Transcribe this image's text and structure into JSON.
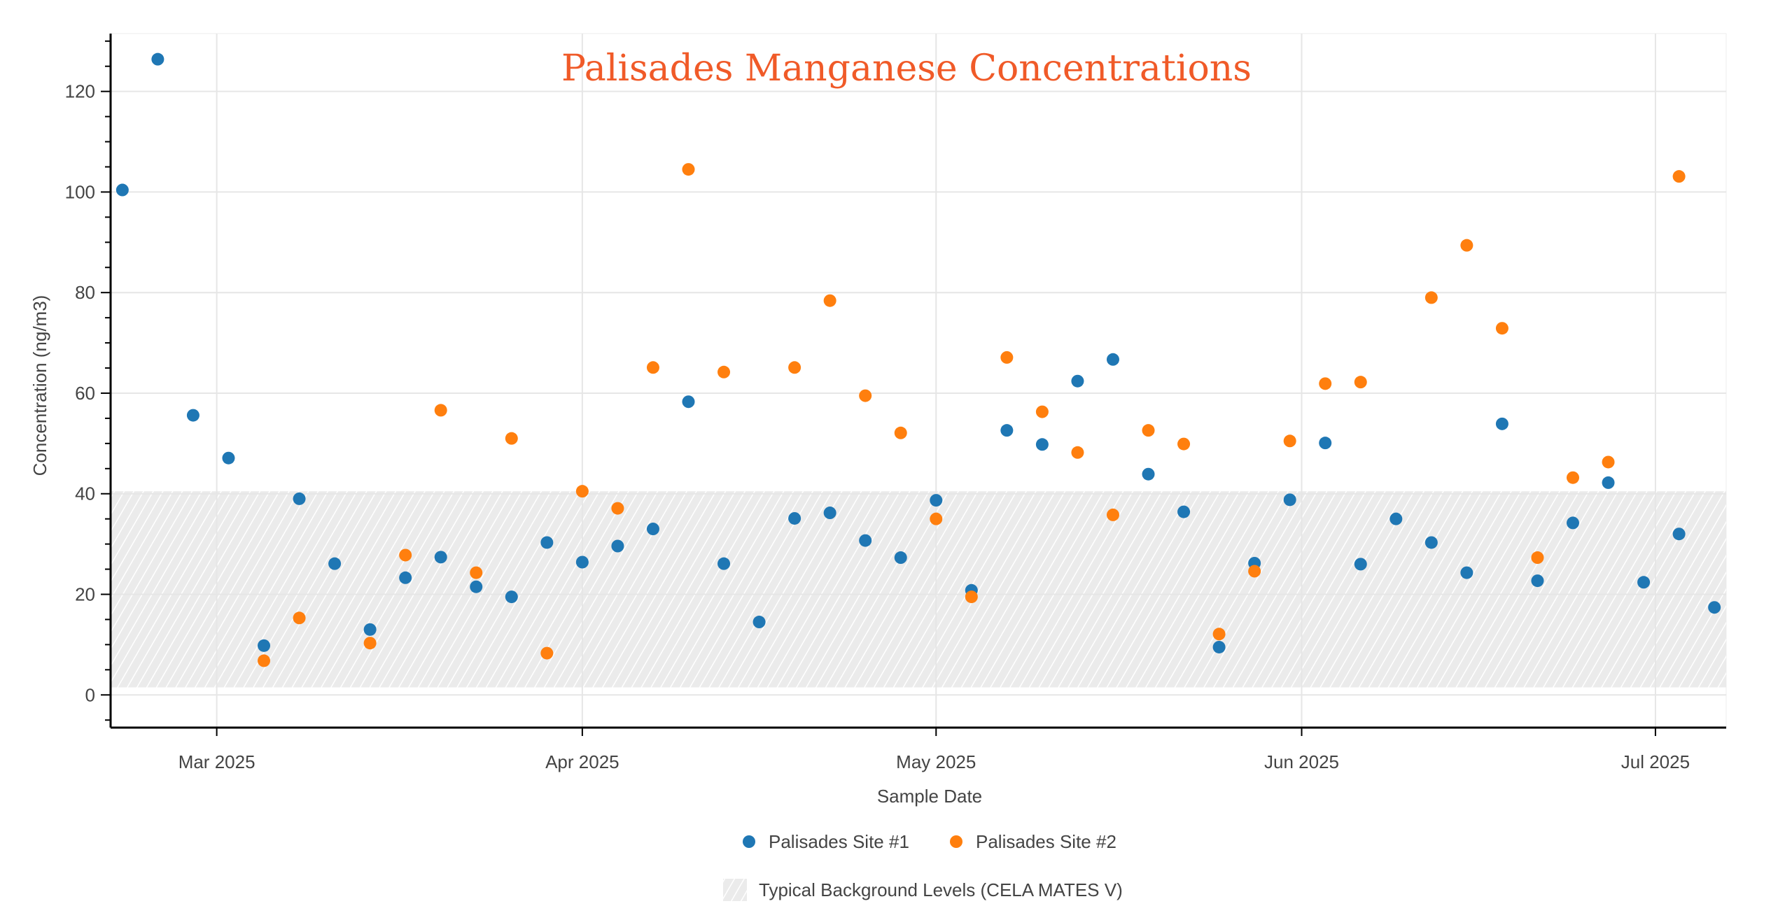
{
  "chart_data": {
    "type": "scatter",
    "title": "Palisades Manganese Concentrations",
    "title_color": "#f05a28",
    "xlabel": "Sample Date",
    "ylabel": "Concentration (ng/m3)",
    "xlim": [
      "2025-02-20",
      "2025-07-07"
    ],
    "ylim": [
      -6.5,
      131.5
    ],
    "grid": true,
    "legend_placement": "bottom-center",
    "x_ticks": [
      {
        "date": "2025-03-01",
        "label": "Mar 2025"
      },
      {
        "date": "2025-04-01",
        "label": "Apr 2025"
      },
      {
        "date": "2025-05-01",
        "label": "May 2025"
      },
      {
        "date": "2025-06-01",
        "label": "Jun 2025"
      },
      {
        "date": "2025-07-01",
        "label": "Jul 2025"
      }
    ],
    "y_ticks": [
      0,
      20,
      40,
      60,
      80,
      100,
      120
    ],
    "y_minor_step": 5,
    "background_band": {
      "name": "Typical Background Levels (CELA MATES V)",
      "y_range": [
        1.5,
        40.5
      ],
      "fill": "#ebebeb",
      "hatch": "#ffffff"
    },
    "series": [
      {
        "name": "Palisades Site #1",
        "color": "#1f77b4",
        "points": [
          [
            "2025-02-21",
            100.4
          ],
          [
            "2025-02-24",
            126.4
          ],
          [
            "2025-02-27",
            55.6
          ],
          [
            "2025-03-02",
            47.1
          ],
          [
            "2025-03-05",
            9.8
          ],
          [
            "2025-03-08",
            39.0
          ],
          [
            "2025-03-11",
            26.1
          ],
          [
            "2025-03-14",
            13.0
          ],
          [
            "2025-03-17",
            23.3
          ],
          [
            "2025-03-20",
            27.4
          ],
          [
            "2025-03-23",
            21.5
          ],
          [
            "2025-03-26",
            19.5
          ],
          [
            "2025-03-29",
            30.3
          ],
          [
            "2025-04-01",
            26.4
          ],
          [
            "2025-04-04",
            29.6
          ],
          [
            "2025-04-07",
            33.0
          ],
          [
            "2025-04-10",
            58.3
          ],
          [
            "2025-04-13",
            26.1
          ],
          [
            "2025-04-16",
            14.5
          ],
          [
            "2025-04-19",
            35.1
          ],
          [
            "2025-04-22",
            36.2
          ],
          [
            "2025-04-25",
            30.7
          ],
          [
            "2025-04-28",
            27.3
          ],
          [
            "2025-05-01",
            38.7
          ],
          [
            "2025-05-04",
            20.8
          ],
          [
            "2025-05-07",
            52.6
          ],
          [
            "2025-05-10",
            49.8
          ],
          [
            "2025-05-13",
            62.4
          ],
          [
            "2025-05-16",
            66.7
          ],
          [
            "2025-05-19",
            43.9
          ],
          [
            "2025-05-22",
            36.4
          ],
          [
            "2025-05-25",
            9.5
          ],
          [
            "2025-05-28",
            26.2
          ],
          [
            "2025-05-31",
            38.8
          ],
          [
            "2025-06-03",
            50.1
          ],
          [
            "2025-06-06",
            26.0
          ],
          [
            "2025-06-09",
            35.0
          ],
          [
            "2025-06-12",
            30.3
          ],
          [
            "2025-06-15",
            24.3
          ],
          [
            "2025-06-18",
            53.9
          ],
          [
            "2025-06-21",
            22.7
          ],
          [
            "2025-06-24",
            34.2
          ],
          [
            "2025-06-27",
            42.2
          ],
          [
            "2025-06-30",
            22.4
          ],
          [
            "2025-07-03",
            32.0
          ],
          [
            "2025-07-06",
            17.4
          ]
        ]
      },
      {
        "name": "Palisades Site #2",
        "color": "#ff7f0e",
        "points": [
          [
            "2025-03-05",
            6.8
          ],
          [
            "2025-03-08",
            15.3
          ],
          [
            "2025-03-14",
            10.3
          ],
          [
            "2025-03-17",
            27.8
          ],
          [
            "2025-03-20",
            56.6
          ],
          [
            "2025-03-23",
            24.3
          ],
          [
            "2025-03-26",
            51.0
          ],
          [
            "2025-03-29",
            8.3
          ],
          [
            "2025-04-01",
            40.5
          ],
          [
            "2025-04-04",
            37.1
          ],
          [
            "2025-04-07",
            65.1
          ],
          [
            "2025-04-10",
            104.5
          ],
          [
            "2025-04-13",
            64.2
          ],
          [
            "2025-04-19",
            65.1
          ],
          [
            "2025-04-22",
            78.4
          ],
          [
            "2025-04-25",
            59.5
          ],
          [
            "2025-04-28",
            52.1
          ],
          [
            "2025-05-01",
            35.0
          ],
          [
            "2025-05-04",
            19.5
          ],
          [
            "2025-05-07",
            67.1
          ],
          [
            "2025-05-10",
            56.3
          ],
          [
            "2025-05-13",
            48.2
          ],
          [
            "2025-05-16",
            35.8
          ],
          [
            "2025-05-19",
            52.6
          ],
          [
            "2025-05-22",
            49.9
          ],
          [
            "2025-05-25",
            12.1
          ],
          [
            "2025-05-28",
            24.6
          ],
          [
            "2025-05-31",
            50.5
          ],
          [
            "2025-06-03",
            61.9
          ],
          [
            "2025-06-06",
            62.2
          ],
          [
            "2025-06-12",
            79.0
          ],
          [
            "2025-06-15",
            89.4
          ],
          [
            "2025-06-18",
            72.9
          ],
          [
            "2025-06-21",
            27.3
          ],
          [
            "2025-06-24",
            43.2
          ],
          [
            "2025-06-27",
            46.3
          ],
          [
            "2025-07-03",
            103.1
          ]
        ]
      }
    ]
  },
  "legend": {
    "items": [
      {
        "label": "Palisades Site #1",
        "color": "#1f77b4",
        "symbol": "circle"
      },
      {
        "label": "Palisades Site #2",
        "color": "#ff7f0e",
        "symbol": "circle"
      }
    ],
    "band_label": "Typical Background Levels (CELA MATES V)"
  }
}
